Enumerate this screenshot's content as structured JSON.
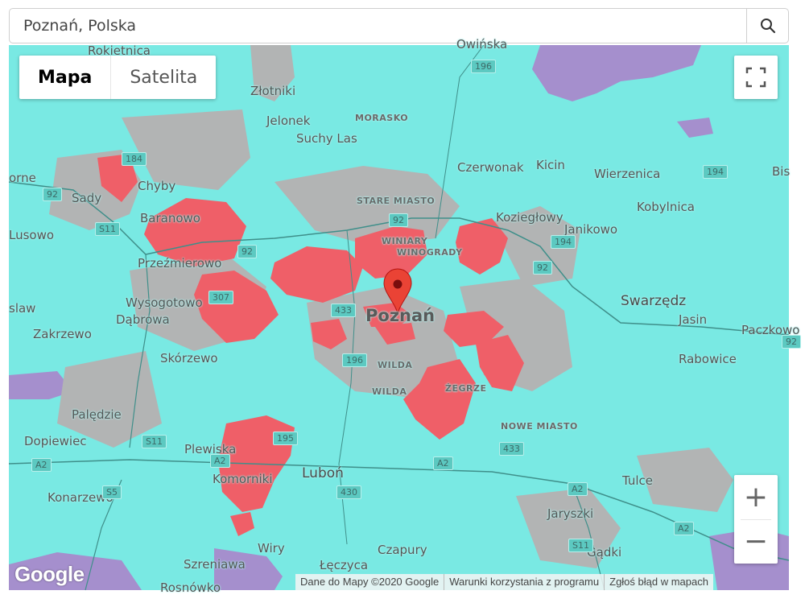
{
  "search": {
    "value": "Poznań, Polska"
  },
  "map_type": {
    "map_label": "Mapa",
    "satellite_label": "Satelita"
  },
  "attribution": {
    "data": "Dane do Mapy ©2020 Google",
    "terms": "Warunki korzystania z programu",
    "report": "Zgłoś błąd w mapach"
  },
  "logo": "Google",
  "zoom": {
    "in": "+",
    "out": "−"
  },
  "colors": {
    "water_base": "#79e9e3",
    "coverage_red": "#ef5f68",
    "gray": "#b2b4b4",
    "purple": "#a58fcd"
  },
  "places": [
    {
      "text": "Rokietnica",
      "cls": ""
    },
    {
      "text": "Złotniki",
      "cls": ""
    },
    {
      "text": "Jelonek",
      "cls": ""
    },
    {
      "text": "MORASKO",
      "cls": "small"
    },
    {
      "text": "Suchy Las",
      "cls": ""
    },
    {
      "text": "Czerwonak",
      "cls": ""
    },
    {
      "text": "Kicin",
      "cls": ""
    },
    {
      "text": "Wierzenica",
      "cls": ""
    },
    {
      "text": "Chyby",
      "cls": ""
    },
    {
      "text": "Sady",
      "cls": ""
    },
    {
      "text": "Baranowo",
      "cls": ""
    },
    {
      "text": "STARE MIASTO",
      "cls": "small"
    },
    {
      "text": "Koziegłowy",
      "cls": ""
    },
    {
      "text": "Janikowo",
      "cls": ""
    },
    {
      "text": "Kobylnica",
      "cls": ""
    },
    {
      "text": "Lusowo",
      "cls": ""
    },
    {
      "text": "WINIARY",
      "cls": "small"
    },
    {
      "text": "WINOGRADY",
      "cls": "small"
    },
    {
      "text": "Przeźmierowo",
      "cls": ""
    },
    {
      "text": "Wysogotowo",
      "cls": ""
    },
    {
      "text": "Poznań",
      "cls": "city"
    },
    {
      "text": "Swarzędz",
      "cls": "big"
    },
    {
      "text": "Jasin",
      "cls": ""
    },
    {
      "text": "Dąbrowa",
      "cls": ""
    },
    {
      "text": "Zakrzewo",
      "cls": ""
    },
    {
      "text": "Paczkowo",
      "cls": ""
    },
    {
      "text": "Skórzewo",
      "cls": ""
    },
    {
      "text": "Rabowice",
      "cls": ""
    },
    {
      "text": "WILDA",
      "cls": "small"
    },
    {
      "text": "WILDA",
      "cls": "small"
    },
    {
      "text": "ŻEGRZE",
      "cls": "small"
    },
    {
      "text": "Palędzie",
      "cls": ""
    },
    {
      "text": "NOWE MIASTO",
      "cls": "small"
    },
    {
      "text": "Plewiska",
      "cls": ""
    },
    {
      "text": "Dopiewiec",
      "cls": ""
    },
    {
      "text": "Luboń",
      "cls": "big"
    },
    {
      "text": "Komorniki",
      "cls": ""
    },
    {
      "text": "Tulce",
      "cls": ""
    },
    {
      "text": "Konarzewo",
      "cls": ""
    },
    {
      "text": "Jaryszki",
      "cls": ""
    },
    {
      "text": "Wiry",
      "cls": ""
    },
    {
      "text": "Czapury",
      "cls": ""
    },
    {
      "text": "Gądki",
      "cls": ""
    },
    {
      "text": "Szreniawa",
      "cls": ""
    },
    {
      "text": "Łęczyca",
      "cls": ""
    },
    {
      "text": "Rosnówko",
      "cls": ""
    },
    {
      "text": "Bis",
      "cls": ""
    },
    {
      "text": "slaw",
      "cls": ""
    },
    {
      "text": "orne",
      "cls": ""
    },
    {
      "text": "Owińska",
      "cls": ""
    }
  ],
  "roads": [
    {
      "text": "196"
    },
    {
      "text": "184"
    },
    {
      "text": "92"
    },
    {
      "text": "S11"
    },
    {
      "text": "92"
    },
    {
      "text": "92"
    },
    {
      "text": "194"
    },
    {
      "text": "92"
    },
    {
      "text": "307"
    },
    {
      "text": "433"
    },
    {
      "text": "196"
    },
    {
      "text": "194"
    },
    {
      "text": "92"
    },
    {
      "text": "S11"
    },
    {
      "text": "195"
    },
    {
      "text": "A2"
    },
    {
      "text": "A2"
    },
    {
      "text": "433"
    },
    {
      "text": "A2"
    },
    {
      "text": "430"
    },
    {
      "text": "S5"
    },
    {
      "text": "A2"
    },
    {
      "text": "S11"
    },
    {
      "text": "A2"
    }
  ]
}
